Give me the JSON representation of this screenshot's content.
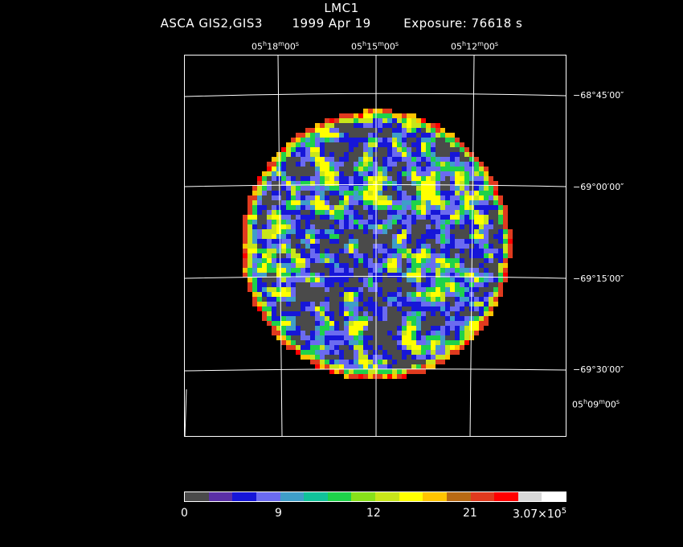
{
  "header": {
    "object": "LMC1",
    "instrument": "ASCA GIS2,GIS3",
    "date": "1999 Apr 19",
    "exposure": "Exposure: 76618 s"
  },
  "axes": {
    "ra_top": [
      {
        "h": "05",
        "m": "18",
        "s": "00"
      },
      {
        "h": "05",
        "m": "15",
        "s": "00"
      },
      {
        "h": "05",
        "m": "12",
        "s": "00"
      }
    ],
    "ra_right": {
      "h": "05",
      "m": "09",
      "s": "00"
    },
    "dec": [
      "−68°45′00″",
      "−69°00′00″",
      "−69°15′00″",
      "−69°30′00″"
    ]
  },
  "colorbar": {
    "colors": [
      "#4a4a4a",
      "#5a2fa6",
      "#1616d8",
      "#6b6bf0",
      "#3f9ec8",
      "#11c29a",
      "#1ed24a",
      "#88e01a",
      "#c8e61a",
      "#ffff00",
      "#ffc400",
      "#b86a14",
      "#e03a1e",
      "#ff0000",
      "#d8d8d8",
      "#ffffff"
    ],
    "labels": [
      "0",
      "9",
      "12",
      "21"
    ],
    "max_mant": "3.07×10",
    "max_exp": "5"
  },
  "image": {
    "palette": [
      "#4a4a4a",
      "#5a2fa6",
      "#1616d8",
      "#6b6bf0",
      "#3f9ec8",
      "#11c29a",
      "#1ed24a",
      "#88e01a",
      "#c8e61a",
      "#ffff00",
      "#ffc400",
      "#b86a14",
      "#e03a1e",
      "#ff0000",
      "#d8d8d8",
      "#ffffff"
    ]
  }
}
